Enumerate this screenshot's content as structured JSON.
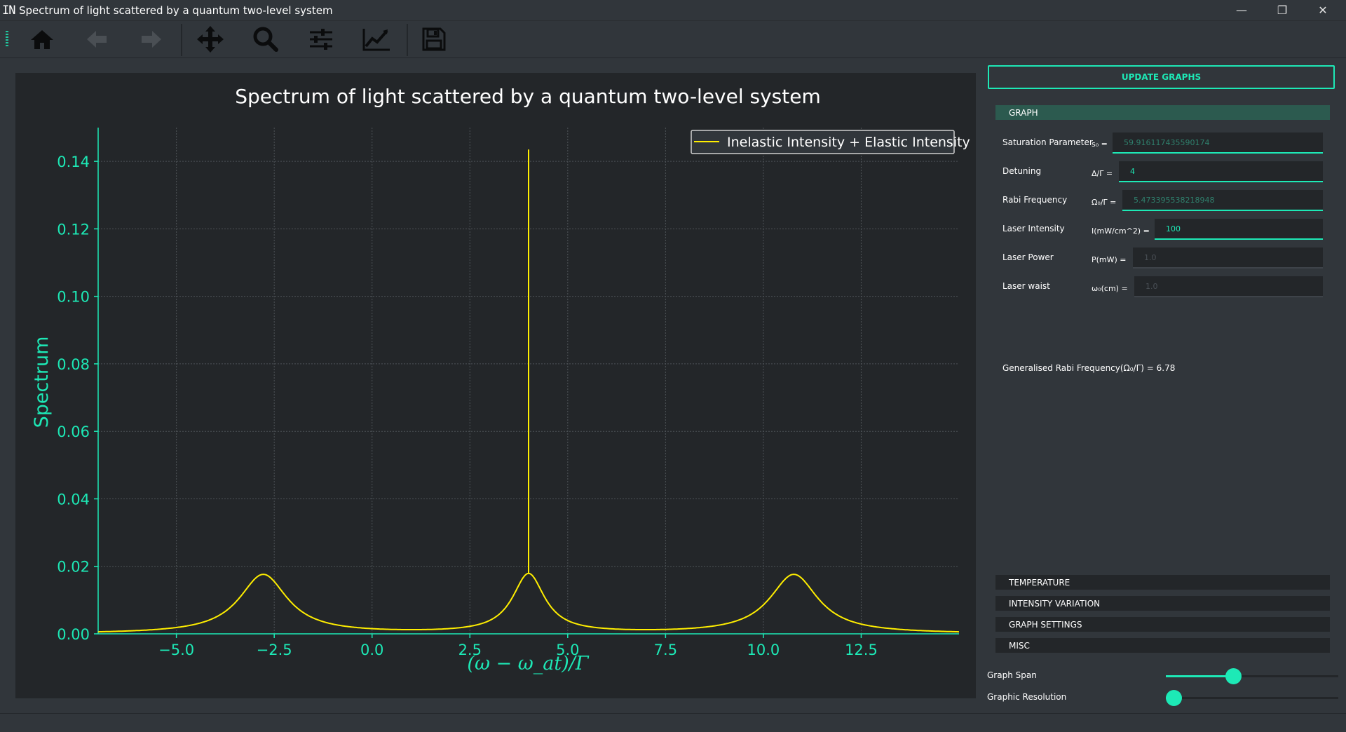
{
  "window": {
    "title": "Spectrum of light scattered by a quantum two-level system",
    "app_icon": "IN",
    "controls": {
      "minimize": "—",
      "restore": "❐",
      "close": "✕"
    }
  },
  "toolbar": {
    "buttons": [
      "home-icon",
      "back-arrow-icon",
      "forward-arrow-icon",
      "pan-icon",
      "zoom-icon",
      "configure-subplots-icon",
      "edit-axis-icon",
      "save-icon"
    ]
  },
  "colors": {
    "accent": "#1de9b6",
    "curve": "#ffee00",
    "plot_bg": "#232629",
    "window_bg": "#31363b"
  },
  "chart_data": {
    "type": "line",
    "title": "Spectrum of light scattered by a quantum two-level system",
    "xlabel": "(ω − ω_at)/Γ",
    "ylabel": "Spectrum",
    "xlim": [
      -7,
      15
    ],
    "ylim": [
      0,
      0.15
    ],
    "xticks": [
      -5.0,
      -2.5,
      0.0,
      2.5,
      5.0,
      7.5,
      10.0,
      12.5
    ],
    "xtick_labels": [
      "−5.0",
      "−2.5",
      "0.0",
      "2.5",
      "5.0",
      "7.5",
      "10.0",
      "12.5"
    ],
    "yticks": [
      0.0,
      0.02,
      0.04,
      0.06,
      0.08,
      0.1,
      0.12,
      0.14
    ],
    "ytick_labels": [
      "0.00",
      "0.02",
      "0.04",
      "0.06",
      "0.08",
      "0.10",
      "0.12",
      "0.14"
    ],
    "grid": true,
    "legend": {
      "placement": "top-right",
      "entries": [
        "Inelastic Intensity + Elastic Intensity"
      ]
    },
    "series": [
      {
        "name": "Inelastic Intensity + Elastic Intensity",
        "model": "mollow-triplet",
        "peaks": [
          {
            "center": -2.78,
            "height": 0.0188,
            "width": 0.75
          },
          {
            "center": 4.0,
            "height": 0.0188,
            "width": 0.5
          },
          {
            "center": 10.78,
            "height": 0.0188,
            "width": 0.75
          }
        ],
        "elastic_spike": {
          "x": 4.0,
          "height": 0.1435
        },
        "baseline_min": 0.0022,
        "baseline_min_x": [
          0.7,
          7.3
        ]
      }
    ]
  },
  "panel": {
    "update_button": "UPDATE GRAPHS",
    "graph_section": "GRAPH",
    "params": {
      "saturation": {
        "label": "Saturation Parameter",
        "symbol": "s₀ =",
        "value": "59.916117435590174"
      },
      "detuning": {
        "label": "Detuning",
        "symbol": "Δ/Γ =",
        "value": "4"
      },
      "rabi": {
        "label": "Rabi Frequency",
        "symbol": "Ω₀/Γ =",
        "value": "5.473395538218948"
      },
      "intensity": {
        "label": "Laser Intensity",
        "symbol": "I(mW/cm^2) =",
        "value": "100"
      },
      "power": {
        "label": "Laser Power",
        "symbol": "P(mW) =",
        "value": "1.0"
      },
      "waist": {
        "label": "Laser waist",
        "symbol": "ω₀(cm) =",
        "value": "1.0"
      }
    },
    "generalised_rabi": "Generalised Rabi Frequency(Ω₀/Γ) = 6.78",
    "sections": [
      "TEMPERATURE",
      "INTENSITY VARIATION",
      "GRAPH SETTINGS",
      "MISC"
    ],
    "sliders": {
      "graph_span": {
        "label": "Graph Span",
        "value": 0.38
      },
      "graphic_resolution": {
        "label": "Graphic Resolution",
        "value": 0.0
      }
    }
  }
}
